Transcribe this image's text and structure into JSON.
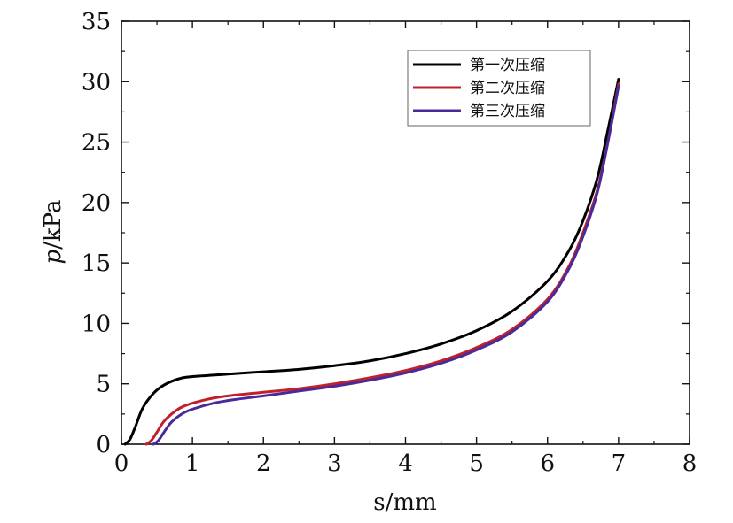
{
  "chart_data": {
    "type": "line",
    "xlabel": "s/mm",
    "ylabel_italic": "p",
    "ylabel_rest": "/kPa",
    "xlim": [
      0,
      8
    ],
    "ylim": [
      0,
      35
    ],
    "xticks": [
      0,
      1,
      2,
      3,
      4,
      5,
      6,
      7,
      8
    ],
    "yticks": [
      0,
      5,
      10,
      15,
      20,
      25,
      30,
      35
    ],
    "xtick_labels": [
      "0",
      "1",
      "2",
      "3",
      "4",
      "5",
      "6",
      "7",
      "8"
    ],
    "ytick_labels": [
      "0",
      "5",
      "10",
      "15",
      "20",
      "25",
      "30",
      "35"
    ],
    "grid": false,
    "legend_position": "top-right",
    "series": [
      {
        "name": "第一次压缩",
        "color": "#000000",
        "points": [
          [
            0.05,
            0
          ],
          [
            0.12,
            0.4
          ],
          [
            0.2,
            1.5
          ],
          [
            0.3,
            3.0
          ],
          [
            0.45,
            4.2
          ],
          [
            0.6,
            4.9
          ],
          [
            0.8,
            5.4
          ],
          [
            1.0,
            5.6
          ],
          [
            1.5,
            5.8
          ],
          [
            2.0,
            6.0
          ],
          [
            2.5,
            6.2
          ],
          [
            3.0,
            6.5
          ],
          [
            3.5,
            6.9
          ],
          [
            4.0,
            7.5
          ],
          [
            4.5,
            8.3
          ],
          [
            5.0,
            9.4
          ],
          [
            5.5,
            11.0
          ],
          [
            6.0,
            13.5
          ],
          [
            6.3,
            16.0
          ],
          [
            6.5,
            18.5
          ],
          [
            6.7,
            22.0
          ],
          [
            6.85,
            26.0
          ],
          [
            7.0,
            30.2
          ]
        ]
      },
      {
        "name": "第二次压缩",
        "color": "#c0202a",
        "points": [
          [
            0.35,
            0
          ],
          [
            0.42,
            0.3
          ],
          [
            0.5,
            1.0
          ],
          [
            0.6,
            1.9
          ],
          [
            0.75,
            2.7
          ],
          [
            0.9,
            3.2
          ],
          [
            1.2,
            3.7
          ],
          [
            1.5,
            4.0
          ],
          [
            2.0,
            4.3
          ],
          [
            2.5,
            4.6
          ],
          [
            3.0,
            5.0
          ],
          [
            3.5,
            5.5
          ],
          [
            4.0,
            6.1
          ],
          [
            4.5,
            6.9
          ],
          [
            5.0,
            8.0
          ],
          [
            5.5,
            9.5
          ],
          [
            6.0,
            12.0
          ],
          [
            6.3,
            14.7
          ],
          [
            6.5,
            17.5
          ],
          [
            6.7,
            21.0
          ],
          [
            6.85,
            25.0
          ],
          [
            7.0,
            29.8
          ]
        ]
      },
      {
        "name": "第三次压缩",
        "color": "#4a2a9a",
        "points": [
          [
            0.45,
            0
          ],
          [
            0.52,
            0.3
          ],
          [
            0.6,
            1.0
          ],
          [
            0.7,
            1.8
          ],
          [
            0.85,
            2.5
          ],
          [
            1.0,
            2.9
          ],
          [
            1.3,
            3.4
          ],
          [
            1.6,
            3.7
          ],
          [
            2.0,
            4.0
          ],
          [
            2.5,
            4.4
          ],
          [
            3.0,
            4.8
          ],
          [
            3.5,
            5.3
          ],
          [
            4.0,
            5.9
          ],
          [
            4.5,
            6.7
          ],
          [
            5.0,
            7.8
          ],
          [
            5.5,
            9.3
          ],
          [
            6.0,
            11.8
          ],
          [
            6.3,
            14.5
          ],
          [
            6.5,
            17.2
          ],
          [
            6.7,
            20.8
          ],
          [
            6.85,
            25.0
          ],
          [
            7.0,
            29.6
          ]
        ]
      }
    ]
  }
}
